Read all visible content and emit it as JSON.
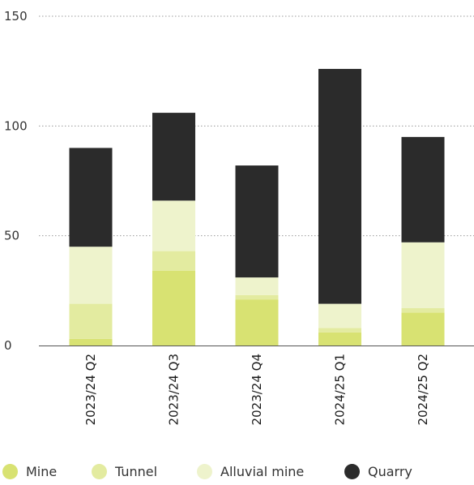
{
  "chart_data": {
    "type": "bar",
    "stacked": true,
    "categories": [
      "2023/24 Q2",
      "2023/24 Q3",
      "2023/24 Q4",
      "2024/25 Q1",
      "2024/25 Q2"
    ],
    "series": [
      {
        "name": "Mine",
        "color": "#d8e272",
        "values": [
          3,
          34,
          21,
          6,
          15
        ]
      },
      {
        "name": "Tunnel",
        "color": "#e3eba0",
        "values": [
          16,
          9,
          2,
          2,
          2
        ]
      },
      {
        "name": "Alluvial mine",
        "color": "#eef3cc",
        "values": [
          26,
          23,
          8,
          11,
          30
        ]
      },
      {
        "name": "Quarry",
        "color": "#2b2b2b",
        "values": [
          45,
          40,
          51,
          107,
          48
        ]
      }
    ],
    "yticks": [
      0,
      50,
      100,
      150
    ],
    "ylim": [
      0,
      150
    ],
    "grid": true,
    "legend_position": "bottom",
    "title": "",
    "xlabel": "",
    "ylabel": ""
  }
}
